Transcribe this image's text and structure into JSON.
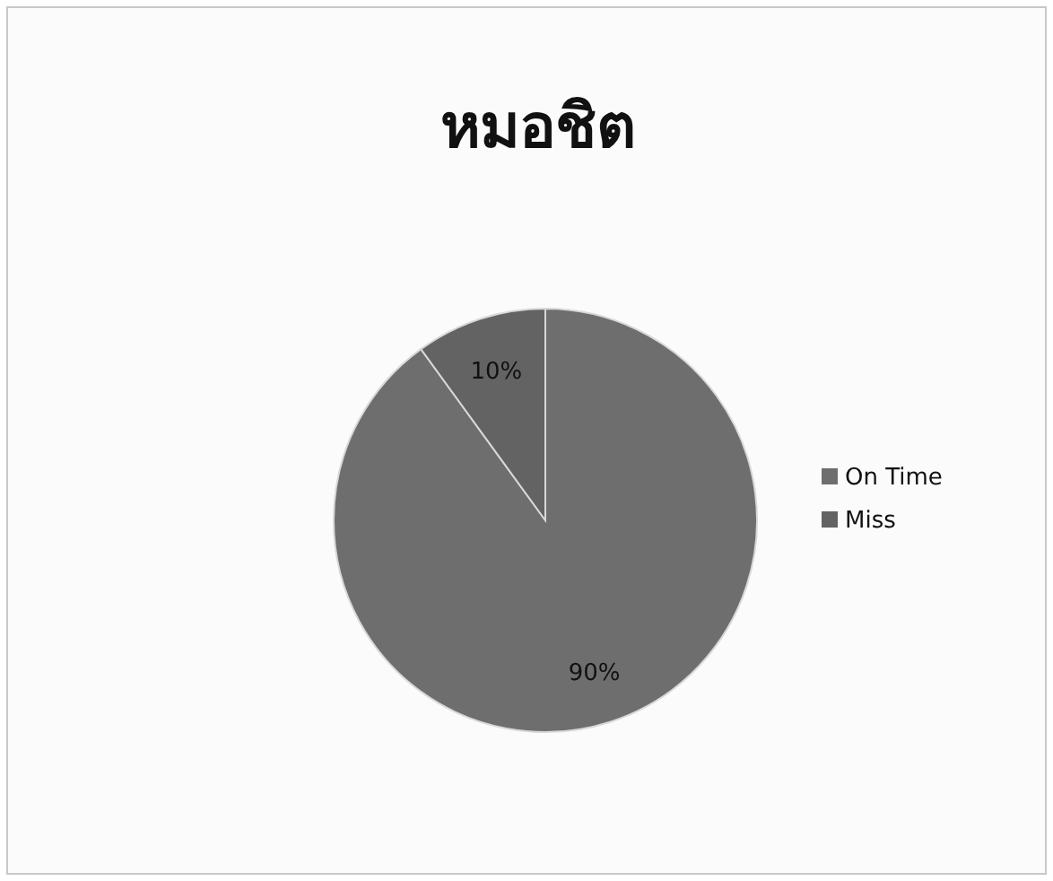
{
  "chart_data": {
    "type": "pie",
    "title": "หมอชิต",
    "categories": [
      "On Time",
      "Miss"
    ],
    "values": [
      90,
      10
    ],
    "colors": [
      "#6e6e6e",
      "#636363"
    ],
    "value_labels": [
      "90%",
      "10%"
    ],
    "legend": "right"
  }
}
